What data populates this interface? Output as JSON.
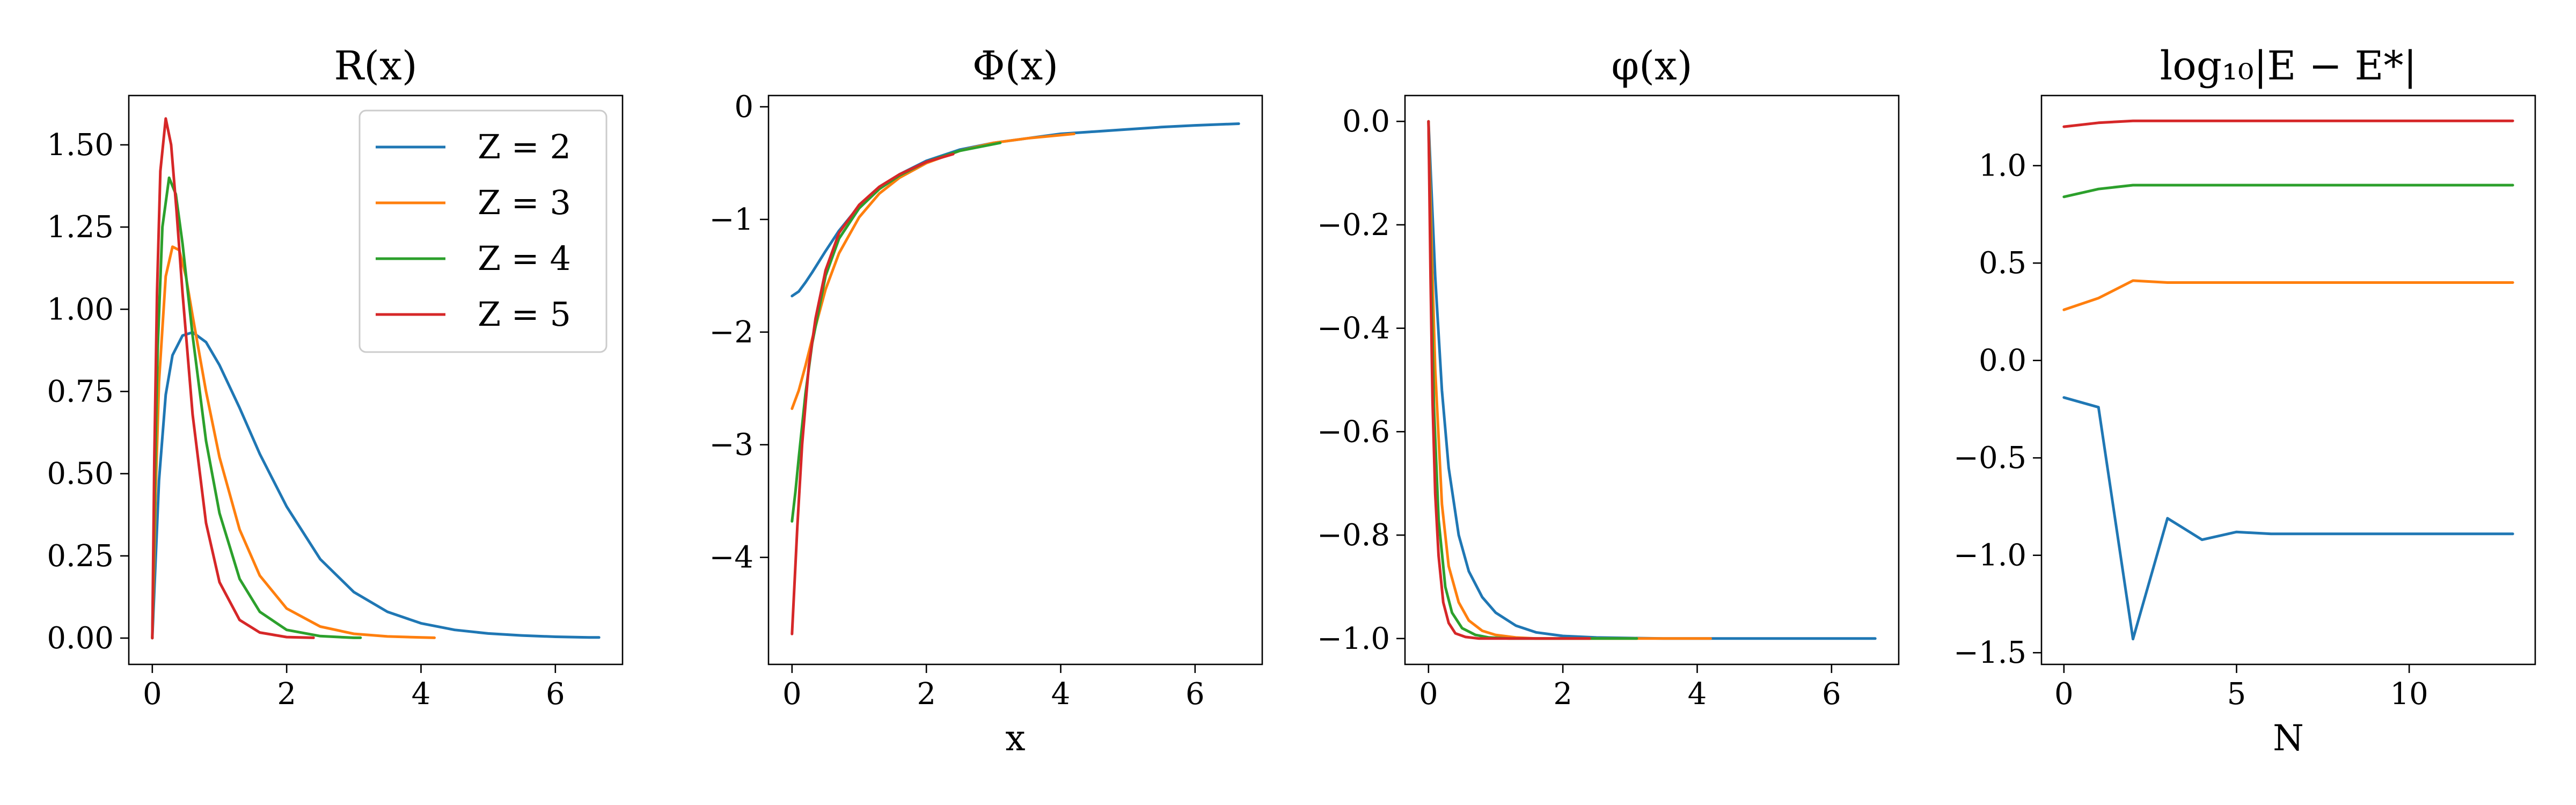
{
  "figure": {
    "series_colors": [
      "#1f77b4",
      "#ff7f0e",
      "#2ca02c",
      "#d62728"
    ]
  },
  "chart_data": [
    {
      "type": "line",
      "title": "R(x)",
      "xlabel": "",
      "ylabel": "",
      "xlim": [
        -0.35,
        7.0
      ],
      "ylim": [
        -0.08,
        1.65
      ],
      "xticks": [
        0,
        2,
        4,
        6
      ],
      "xtick_labels": [
        "0",
        "2",
        "4",
        "6"
      ],
      "yticks": [
        0.0,
        0.25,
        0.5,
        0.75,
        1.0,
        1.25,
        1.5
      ],
      "ytick_labels": [
        "0.00",
        "0.25",
        "0.50",
        "0.75",
        "1.00",
        "1.25",
        "1.50"
      ],
      "grid": false,
      "legend": {
        "placement": "top-right",
        "entries": [
          "Z = 2",
          "Z = 3",
          "Z = 4",
          "Z = 5"
        ]
      },
      "series": [
        {
          "name": "Z = 2",
          "color": "#1f77b4",
          "x": [
            0,
            0.1,
            0.2,
            0.3,
            0.45,
            0.6,
            0.8,
            1.0,
            1.3,
            1.6,
            2.0,
            2.5,
            3.0,
            3.5,
            4.0,
            4.5,
            5.0,
            5.5,
            6.0,
            6.5,
            6.65
          ],
          "y": [
            0,
            0.48,
            0.74,
            0.86,
            0.92,
            0.93,
            0.9,
            0.83,
            0.7,
            0.56,
            0.4,
            0.24,
            0.14,
            0.08,
            0.045,
            0.025,
            0.014,
            0.008,
            0.004,
            0.002,
            0.002
          ]
        },
        {
          "name": "Z = 3",
          "color": "#ff7f0e",
          "x": [
            0,
            0.05,
            0.1,
            0.2,
            0.3,
            0.4,
            0.5,
            0.6,
            0.8,
            1.0,
            1.3,
            1.6,
            2.0,
            2.5,
            3.0,
            3.5,
            4.0,
            4.2
          ],
          "y": [
            0,
            0.45,
            0.78,
            1.1,
            1.19,
            1.18,
            1.1,
            0.98,
            0.75,
            0.55,
            0.33,
            0.19,
            0.09,
            0.035,
            0.013,
            0.005,
            0.002,
            0.001
          ]
        },
        {
          "name": "Z = 4",
          "color": "#2ca02c",
          "x": [
            0,
            0.04,
            0.08,
            0.15,
            0.25,
            0.35,
            0.45,
            0.6,
            0.8,
            1.0,
            1.3,
            1.6,
            2.0,
            2.5,
            3.0,
            3.1
          ],
          "y": [
            0,
            0.5,
            0.88,
            1.25,
            1.4,
            1.35,
            1.2,
            0.92,
            0.6,
            0.38,
            0.18,
            0.08,
            0.025,
            0.006,
            0.001,
            0.001
          ]
        },
        {
          "name": "Z = 5",
          "color": "#d62728",
          "x": [
            0,
            0.03,
            0.07,
            0.12,
            0.2,
            0.28,
            0.36,
            0.45,
            0.6,
            0.8,
            1.0,
            1.3,
            1.6,
            2.0,
            2.4
          ],
          "y": [
            0,
            0.55,
            1.05,
            1.42,
            1.58,
            1.5,
            1.3,
            1.05,
            0.68,
            0.35,
            0.17,
            0.055,
            0.017,
            0.003,
            0.001
          ]
        }
      ]
    },
    {
      "type": "line",
      "title": "Φ(x)",
      "xlabel": "x",
      "ylabel": "",
      "xlim": [
        -0.35,
        7.0
      ],
      "ylim": [
        -4.95,
        0.1
      ],
      "xticks": [
        0,
        2,
        4,
        6
      ],
      "xtick_labels": [
        "0",
        "2",
        "4",
        "6"
      ],
      "yticks": [
        -4,
        -3,
        -2,
        -1,
        0
      ],
      "ytick_labels": [
        "−4",
        "−3",
        "−2",
        "−1",
        "0"
      ],
      "grid": false,
      "series": [
        {
          "name": "Z = 2",
          "color": "#1f77b4",
          "x": [
            0,
            0.1,
            0.2,
            0.3,
            0.5,
            0.7,
            1.0,
            1.3,
            1.6,
            2.0,
            2.5,
            3.0,
            3.5,
            4.0,
            4.5,
            5.0,
            5.5,
            6.0,
            6.65
          ],
          "y": [
            -1.68,
            -1.64,
            -1.56,
            -1.47,
            -1.28,
            -1.1,
            -0.88,
            -0.72,
            -0.6,
            -0.48,
            -0.38,
            -0.32,
            -0.28,
            -0.24,
            -0.22,
            -0.2,
            -0.18,
            -0.165,
            -0.15
          ]
        },
        {
          "name": "Z = 3",
          "color": "#ff7f0e",
          "x": [
            0,
            0.1,
            0.2,
            0.3,
            0.5,
            0.7,
            1.0,
            1.3,
            1.6,
            2.0,
            2.5,
            3.0,
            3.5,
            4.2
          ],
          "y": [
            -2.68,
            -2.52,
            -2.3,
            -2.06,
            -1.62,
            -1.3,
            -0.98,
            -0.77,
            -0.63,
            -0.5,
            -0.39,
            -0.32,
            -0.28,
            -0.24
          ]
        },
        {
          "name": "Z = 4",
          "color": "#2ca02c",
          "x": [
            0,
            0.05,
            0.1,
            0.2,
            0.3,
            0.5,
            0.7,
            1.0,
            1.3,
            1.6,
            2.0,
            2.5,
            3.1
          ],
          "y": [
            -3.68,
            -3.42,
            -3.12,
            -2.55,
            -2.1,
            -1.5,
            -1.17,
            -0.9,
            -0.73,
            -0.61,
            -0.49,
            -0.39,
            -0.32
          ]
        },
        {
          "name": "Z = 5",
          "color": "#d62728",
          "x": [
            0,
            0.04,
            0.08,
            0.15,
            0.25,
            0.35,
            0.5,
            0.7,
            1.0,
            1.3,
            1.6,
            2.0,
            2.4
          ],
          "y": [
            -4.68,
            -4.2,
            -3.72,
            -3.0,
            -2.3,
            -1.88,
            -1.45,
            -1.12,
            -0.87,
            -0.71,
            -0.6,
            -0.49,
            -0.42
          ]
        }
      ]
    },
    {
      "type": "line",
      "title": "φ(x)",
      "xlabel": "",
      "ylabel": "",
      "xlim": [
        -0.35,
        7.0
      ],
      "ylim": [
        -1.05,
        0.05
      ],
      "xticks": [
        0,
        2,
        4,
        6
      ],
      "xtick_labels": [
        "0",
        "2",
        "4",
        "6"
      ],
      "yticks": [
        -1.0,
        -0.8,
        -0.6,
        -0.4,
        -0.2,
        0.0
      ],
      "ytick_labels": [
        "−1.0",
        "−0.8",
        "−0.6",
        "−0.4",
        "−0.2",
        "0.0"
      ],
      "grid": false,
      "series": [
        {
          "name": "Z = 2",
          "color": "#1f77b4",
          "x": [
            0,
            0.1,
            0.2,
            0.3,
            0.45,
            0.6,
            0.8,
            1.0,
            1.3,
            1.6,
            2.0,
            2.5,
            3.0,
            3.5,
            4.0,
            5.0,
            6.0,
            6.65
          ],
          "y": [
            0,
            -0.3,
            -0.52,
            -0.67,
            -0.8,
            -0.87,
            -0.92,
            -0.95,
            -0.975,
            -0.988,
            -0.995,
            -0.998,
            -0.999,
            -1.0,
            -1.0,
            -1.0,
            -1.0,
            -1.0
          ]
        },
        {
          "name": "Z = 3",
          "color": "#ff7f0e",
          "x": [
            0,
            0.05,
            0.1,
            0.2,
            0.3,
            0.45,
            0.6,
            0.8,
            1.0,
            1.3,
            1.6,
            2.0,
            2.5,
            3.0,
            3.5,
            4.2
          ],
          "y": [
            0,
            -0.26,
            -0.48,
            -0.74,
            -0.86,
            -0.93,
            -0.965,
            -0.985,
            -0.993,
            -0.998,
            -1.0,
            -1.0,
            -1.0,
            -1.0,
            -1.0,
            -1.0
          ]
        },
        {
          "name": "Z = 4",
          "color": "#2ca02c",
          "x": [
            0,
            0.04,
            0.08,
            0.15,
            0.25,
            0.35,
            0.5,
            0.7,
            0.9,
            1.2,
            1.6,
            2.0,
            2.5,
            3.1
          ],
          "y": [
            0,
            -0.3,
            -0.55,
            -0.77,
            -0.9,
            -0.95,
            -0.98,
            -0.993,
            -0.998,
            -1.0,
            -1.0,
            -1.0,
            -1.0,
            -1.0
          ]
        },
        {
          "name": "Z = 5",
          "color": "#d62728",
          "x": [
            0,
            0.03,
            0.06,
            0.1,
            0.15,
            0.22,
            0.3,
            0.4,
            0.55,
            0.75,
            1.0,
            1.4,
            1.8,
            2.4
          ],
          "y": [
            0,
            -0.3,
            -0.54,
            -0.72,
            -0.84,
            -0.93,
            -0.97,
            -0.99,
            -0.997,
            -1.0,
            -1.0,
            -1.0,
            -1.0,
            -1.0
          ]
        }
      ]
    },
    {
      "type": "line",
      "title": "log₁₀|E − E*|",
      "xlabel": "N",
      "ylabel": "",
      "xlim": [
        -0.65,
        13.65
      ],
      "ylim": [
        -1.56,
        1.36
      ],
      "xticks": [
        0,
        5,
        10
      ],
      "xtick_labels": [
        "0",
        "5",
        "10"
      ],
      "yticks": [
        -1.5,
        -1.0,
        -0.5,
        0.0,
        0.5,
        1.0
      ],
      "ytick_labels": [
        "−1.5",
        "−1.0",
        "−0.5",
        "0.0",
        "0.5",
        "1.0"
      ],
      "grid": false,
      "series": [
        {
          "name": "Z = 2",
          "color": "#1f77b4",
          "x": [
            0,
            1,
            2,
            3,
            4,
            5,
            6,
            7,
            8,
            9,
            10,
            11,
            12,
            13
          ],
          "y": [
            -0.19,
            -0.24,
            -1.43,
            -0.81,
            -0.92,
            -0.88,
            -0.89,
            -0.89,
            -0.89,
            -0.89,
            -0.89,
            -0.89,
            -0.89,
            -0.89
          ]
        },
        {
          "name": "Z = 3",
          "color": "#ff7f0e",
          "x": [
            0,
            1,
            2,
            3,
            4,
            5,
            6,
            7,
            8,
            9,
            10,
            11,
            12,
            13
          ],
          "y": [
            0.26,
            0.32,
            0.41,
            0.4,
            0.4,
            0.4,
            0.4,
            0.4,
            0.4,
            0.4,
            0.4,
            0.4,
            0.4,
            0.4
          ]
        },
        {
          "name": "Z = 4",
          "color": "#2ca02c",
          "x": [
            0,
            1,
            2,
            3,
            4,
            5,
            6,
            7,
            8,
            9,
            10,
            11,
            12,
            13
          ],
          "y": [
            0.84,
            0.88,
            0.9,
            0.9,
            0.9,
            0.9,
            0.9,
            0.9,
            0.9,
            0.9,
            0.9,
            0.9,
            0.9,
            0.9
          ]
        },
        {
          "name": "Z = 5",
          "color": "#d62728",
          "x": [
            0,
            1,
            2,
            3,
            4,
            5,
            6,
            7,
            8,
            9,
            10,
            11,
            12,
            13
          ],
          "y": [
            1.2,
            1.22,
            1.23,
            1.23,
            1.23,
            1.23,
            1.23,
            1.23,
            1.23,
            1.23,
            1.23,
            1.23,
            1.23,
            1.23
          ]
        }
      ]
    }
  ]
}
